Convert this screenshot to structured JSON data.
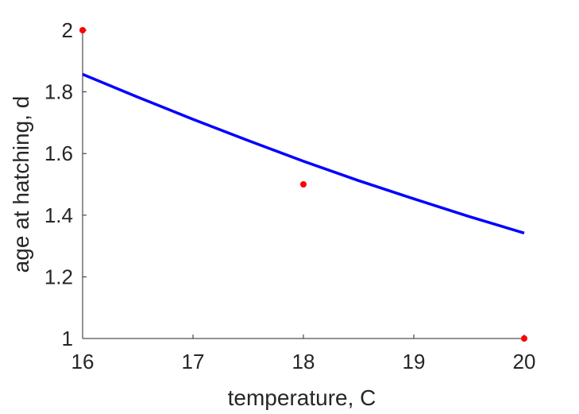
{
  "chart_data": {
    "type": "line",
    "xlabel": "temperature, C",
    "ylabel": "age at hatching, d",
    "xlim": [
      16,
      20
    ],
    "ylim": [
      1,
      2
    ],
    "xticks": [
      16,
      17,
      18,
      19,
      20
    ],
    "yticks": [
      1,
      1.2,
      1.4,
      1.6,
      1.8,
      2
    ],
    "xtick_labels": [
      "16",
      "17",
      "18",
      "19",
      "20"
    ],
    "ytick_labels": [
      "1",
      "1.2",
      "1.4",
      "1.6",
      "1.8",
      "2"
    ],
    "grid": false,
    "series": [
      {
        "type": "line",
        "color": "#0000ff",
        "x": [
          16,
          16.5,
          17,
          17.5,
          18,
          18.5,
          19,
          19.5,
          20
        ],
        "y": [
          1.857,
          1.783,
          1.711,
          1.642,
          1.575,
          1.512,
          1.453,
          1.396,
          1.342
        ]
      },
      {
        "type": "scatter",
        "color": "#ff0000",
        "x": [
          16,
          18,
          20
        ],
        "y": [
          2,
          1.5,
          1
        ]
      }
    ]
  }
}
